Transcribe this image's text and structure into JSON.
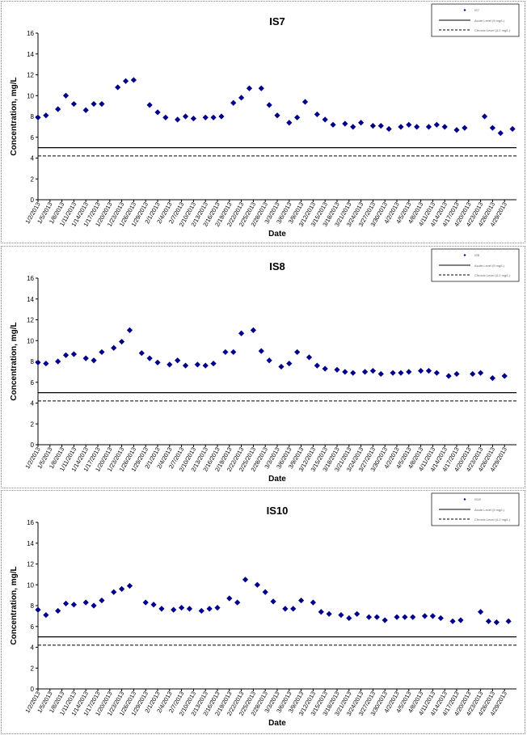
{
  "chart_data": [
    {
      "type": "scatter",
      "title": "IS7",
      "xlabel": "Date",
      "ylabel": "Concentration, mg/L",
      "ylim": [
        0,
        16
      ],
      "ytick_labels": [
        "0",
        "2",
        "4",
        "6",
        "8",
        "10",
        "12",
        "14",
        "16"
      ],
      "grid": false,
      "legend_position": "top-right",
      "legend": [
        "IS7",
        "Acute Level (5 mg/L)",
        "Chronic Level (4.2 mg/L)"
      ],
      "x_tick_labels": [
        "1/2/2013",
        "1/5/2013",
        "1/8/2013",
        "1/11/2013",
        "1/14/2013",
        "1/17/2013",
        "1/20/2013",
        "1/23/2013",
        "1/26/2013",
        "1/29/2013",
        "2/1/2013",
        "2/4/2013",
        "2/7/2013",
        "2/10/2013",
        "2/13/2013",
        "2/16/2013",
        "2/19/2013",
        "2/22/2013",
        "2/25/2013",
        "2/28/2013",
        "3/3/2013",
        "3/6/2013",
        "3/9/2013",
        "3/12/2013",
        "3/15/2013",
        "3/18/2013",
        "3/21/2013",
        "3/24/2013",
        "3/27/2013",
        "3/30/2013",
        "4/2/2013",
        "4/5/2013",
        "4/8/2013",
        "4/11/2013",
        "4/14/2013",
        "4/17/2013",
        "4/20/2013",
        "4/23/2013",
        "4/26/2013",
        "4/29/2013"
      ],
      "series": [
        {
          "name": "IS7",
          "marker": "diamond",
          "color": "#00008B",
          "x": [
            "1/2/2013",
            "1/4/2013",
            "1/7/2013",
            "1/9/2013",
            "1/11/2013",
            "1/14/2013",
            "1/16/2013",
            "1/18/2013",
            "1/22/2013",
            "1/24/2013",
            "1/26/2013",
            "1/30/2013",
            "2/1/2013",
            "2/3/2013",
            "2/6/2013",
            "2/8/2013",
            "2/10/2013",
            "2/13/2013",
            "2/15/2013",
            "2/17/2013",
            "2/20/2013",
            "2/22/2013",
            "2/24/2013",
            "2/27/2013",
            "3/1/2013",
            "3/3/2013",
            "3/6/2013",
            "3/8/2013",
            "3/10/2013",
            "3/13/2013",
            "3/15/2013",
            "3/17/2013",
            "3/20/2013",
            "3/22/2013",
            "3/24/2013",
            "3/27/2013",
            "3/29/2013",
            "3/31/2013",
            "4/3/2013",
            "4/5/2013",
            "4/7/2013",
            "4/10/2013",
            "4/12/2013",
            "4/14/2013",
            "4/17/2013",
            "4/19/2013",
            "4/24/2013",
            "4/26/2013",
            "4/28/2013",
            "5/1/2013"
          ],
          "y": [
            7.9,
            8.1,
            8.7,
            10.0,
            9.2,
            8.6,
            9.2,
            9.2,
            10.8,
            11.4,
            11.5,
            9.1,
            8.4,
            7.9,
            7.7,
            8.0,
            7.8,
            7.9,
            7.9,
            8.0,
            9.3,
            9.8,
            10.7,
            10.7,
            9.1,
            8.1,
            7.4,
            7.9,
            9.4,
            8.2,
            7.7,
            7.2,
            7.3,
            7.0,
            7.4,
            7.1,
            7.1,
            6.8,
            7.0,
            7.2,
            7.0,
            7.0,
            7.2,
            7.0,
            6.7,
            6.9,
            8.0,
            6.9,
            6.4,
            6.8
          ]
        },
        {
          "name": "Acute Level (5 mg/L)",
          "style": "solid",
          "y": 5
        },
        {
          "name": "Chronic Level (4.2 mg/L)",
          "style": "dashed",
          "y": 4.2
        }
      ]
    },
    {
      "type": "scatter",
      "title": "IS8",
      "xlabel": "Date",
      "ylabel": "Concentration, mg/L",
      "ylim": [
        0,
        16
      ],
      "ytick_labels": [
        "0",
        "2",
        "4",
        "6",
        "8",
        "10",
        "12",
        "14",
        "16"
      ],
      "grid": false,
      "legend_position": "top-right",
      "legend": [
        "IS8",
        "Acute Level (5 mg/L)",
        "Chronic Level (4.2 mg/L)"
      ],
      "x_tick_labels": [
        "1/2/2013",
        "1/5/2013",
        "1/8/2013",
        "1/11/2013",
        "1/14/2013",
        "1/17/2013",
        "1/20/2013",
        "1/23/2013",
        "1/26/2013",
        "1/29/2013",
        "2/1/2013",
        "2/4/2013",
        "2/7/2013",
        "2/10/2013",
        "2/13/2013",
        "2/16/2013",
        "2/19/2013",
        "2/22/2013",
        "2/25/2013",
        "2/28/2013",
        "3/3/2013",
        "3/6/2013",
        "3/9/2013",
        "3/12/2013",
        "3/15/2013",
        "3/18/2013",
        "3/21/2013",
        "3/24/2013",
        "3/27/2013",
        "3/30/2013",
        "4/2/2013",
        "4/5/2013",
        "4/8/2013",
        "4/11/2013",
        "4/14/2013",
        "4/17/2013",
        "4/20/2013",
        "4/23/2013",
        "4/26/2013",
        "4/29/2013"
      ],
      "series": [
        {
          "name": "IS8",
          "marker": "diamond",
          "color": "#00008B",
          "x": [
            "1/2/2013",
            "1/4/2013",
            "1/7/2013",
            "1/9/2013",
            "1/11/2013",
            "1/14/2013",
            "1/16/2013",
            "1/18/2013",
            "1/21/2013",
            "1/23/2013",
            "1/25/2013",
            "1/28/2013",
            "1/30/2013",
            "2/1/2013",
            "2/4/2013",
            "2/6/2013",
            "2/8/2013",
            "2/11/2013",
            "2/13/2013",
            "2/15/2013",
            "2/18/2013",
            "2/20/2013",
            "2/22/2013",
            "2/25/2013",
            "2/27/2013",
            "3/1/2013",
            "3/4/2013",
            "3/6/2013",
            "3/8/2013",
            "3/11/2013",
            "3/13/2013",
            "3/15/2013",
            "3/18/2013",
            "3/20/2013",
            "3/22/2013",
            "3/25/2013",
            "3/27/2013",
            "3/29/2013",
            "4/1/2013",
            "4/3/2013",
            "4/5/2013",
            "4/8/2013",
            "4/10/2013",
            "4/12/2013",
            "4/15/2013",
            "4/17/2013",
            "4/21/2013",
            "4/23/2013",
            "4/26/2013",
            "4/29/2013"
          ],
          "y": [
            7.9,
            7.8,
            8.0,
            8.6,
            8.7,
            8.3,
            8.1,
            8.9,
            9.3,
            9.9,
            11.0,
            8.8,
            8.3,
            7.9,
            7.7,
            8.1,
            7.6,
            7.7,
            7.6,
            7.8,
            8.9,
            8.9,
            10.7,
            11.0,
            9.0,
            8.1,
            7.5,
            7.8,
            8.9,
            8.4,
            7.6,
            7.3,
            7.2,
            7.0,
            6.9,
            7.0,
            7.1,
            6.8,
            6.9,
            6.9,
            7.0,
            7.1,
            7.1,
            6.9,
            6.6,
            6.8,
            6.8,
            6.9,
            6.4,
            6.6
          ]
        },
        {
          "name": "Acute Level (5 mg/L)",
          "style": "solid",
          "y": 5
        },
        {
          "name": "Chronic Level (4.2 mg/L)",
          "style": "dashed",
          "y": 4.2
        }
      ]
    },
    {
      "type": "scatter",
      "title": "IS10",
      "xlabel": "Date",
      "ylabel": "Concentration, mg/L",
      "ylim": [
        0,
        16
      ],
      "ytick_labels": [
        "0",
        "2",
        "4",
        "6",
        "8",
        "10",
        "12",
        "14",
        "16"
      ],
      "grid": false,
      "legend_position": "top-right",
      "legend": [
        "IS10",
        "Acute Level (5 mg/L)",
        "Chronic Level (4.2 mg/L)"
      ],
      "x_tick_labels": [
        "1/2/2013",
        "1/5/2013",
        "1/8/2013",
        "1/11/2013",
        "1/14/2013",
        "1/17/2013",
        "1/20/2013",
        "1/23/2013",
        "1/26/2013",
        "1/29/2013",
        "2/1/2013",
        "2/4/2013",
        "2/7/2013",
        "2/10/2013",
        "2/13/2013",
        "2/16/2013",
        "2/19/2013",
        "2/22/2013",
        "2/25/2013",
        "2/28/2013",
        "3/3/2013",
        "3/6/2013",
        "3/9/2013",
        "3/12/2013",
        "3/15/2013",
        "3/18/2013",
        "3/21/2013",
        "3/24/2013",
        "3/27/2013",
        "3/30/2013",
        "4/2/2013",
        "4/5/2013",
        "4/8/2013",
        "4/11/2013",
        "4/14/2013",
        "4/17/2013",
        "4/20/2013",
        "4/23/2013",
        "4/26/2013",
        "4/29/2013"
      ],
      "series": [
        {
          "name": "IS10",
          "marker": "diamond",
          "color": "#00008B",
          "x": [
            "1/2/2013",
            "1/4/2013",
            "1/7/2013",
            "1/9/2013",
            "1/11/2013",
            "1/14/2013",
            "1/16/2013",
            "1/18/2013",
            "1/21/2013",
            "1/23/2013",
            "1/25/2013",
            "1/29/2013",
            "1/31/2013",
            "2/2/2013",
            "2/5/2013",
            "2/7/2013",
            "2/9/2013",
            "2/12/2013",
            "2/14/2013",
            "2/16/2013",
            "2/19/2013",
            "2/21/2013",
            "2/23/2013",
            "2/26/2013",
            "2/28/2013",
            "3/2/2013",
            "3/5/2013",
            "3/7/2013",
            "3/9/2013",
            "3/12/2013",
            "3/14/2013",
            "3/16/2013",
            "3/19/2013",
            "3/21/2013",
            "3/23/2013",
            "3/26/2013",
            "3/28/2013",
            "3/30/2013",
            "4/2/2013",
            "4/4/2013",
            "4/6/2013",
            "4/9/2013",
            "4/11/2013",
            "4/13/2013",
            "4/16/2013",
            "4/18/2013",
            "4/23/2013",
            "4/25/2013",
            "4/27/2013",
            "4/30/2013"
          ],
          "y": [
            7.6,
            7.1,
            7.5,
            8.2,
            8.1,
            8.3,
            8.0,
            8.5,
            9.3,
            9.6,
            9.9,
            8.3,
            8.1,
            7.7,
            7.6,
            7.8,
            7.7,
            7.5,
            7.7,
            7.8,
            8.7,
            8.3,
            10.5,
            10.0,
            9.3,
            8.4,
            7.7,
            7.7,
            8.5,
            8.3,
            7.4,
            7.2,
            7.1,
            6.8,
            7.2,
            6.9,
            6.9,
            6.6,
            6.9,
            6.9,
            6.9,
            7.0,
            7.0,
            6.8,
            6.5,
            6.6,
            7.4,
            6.5,
            6.4,
            6.5
          ]
        },
        {
          "name": "Acute Level (5 mg/L)",
          "style": "solid",
          "y": 5
        },
        {
          "name": "Chronic Level (4.2 mg/L)",
          "style": "dashed",
          "y": 4.2
        }
      ]
    }
  ]
}
